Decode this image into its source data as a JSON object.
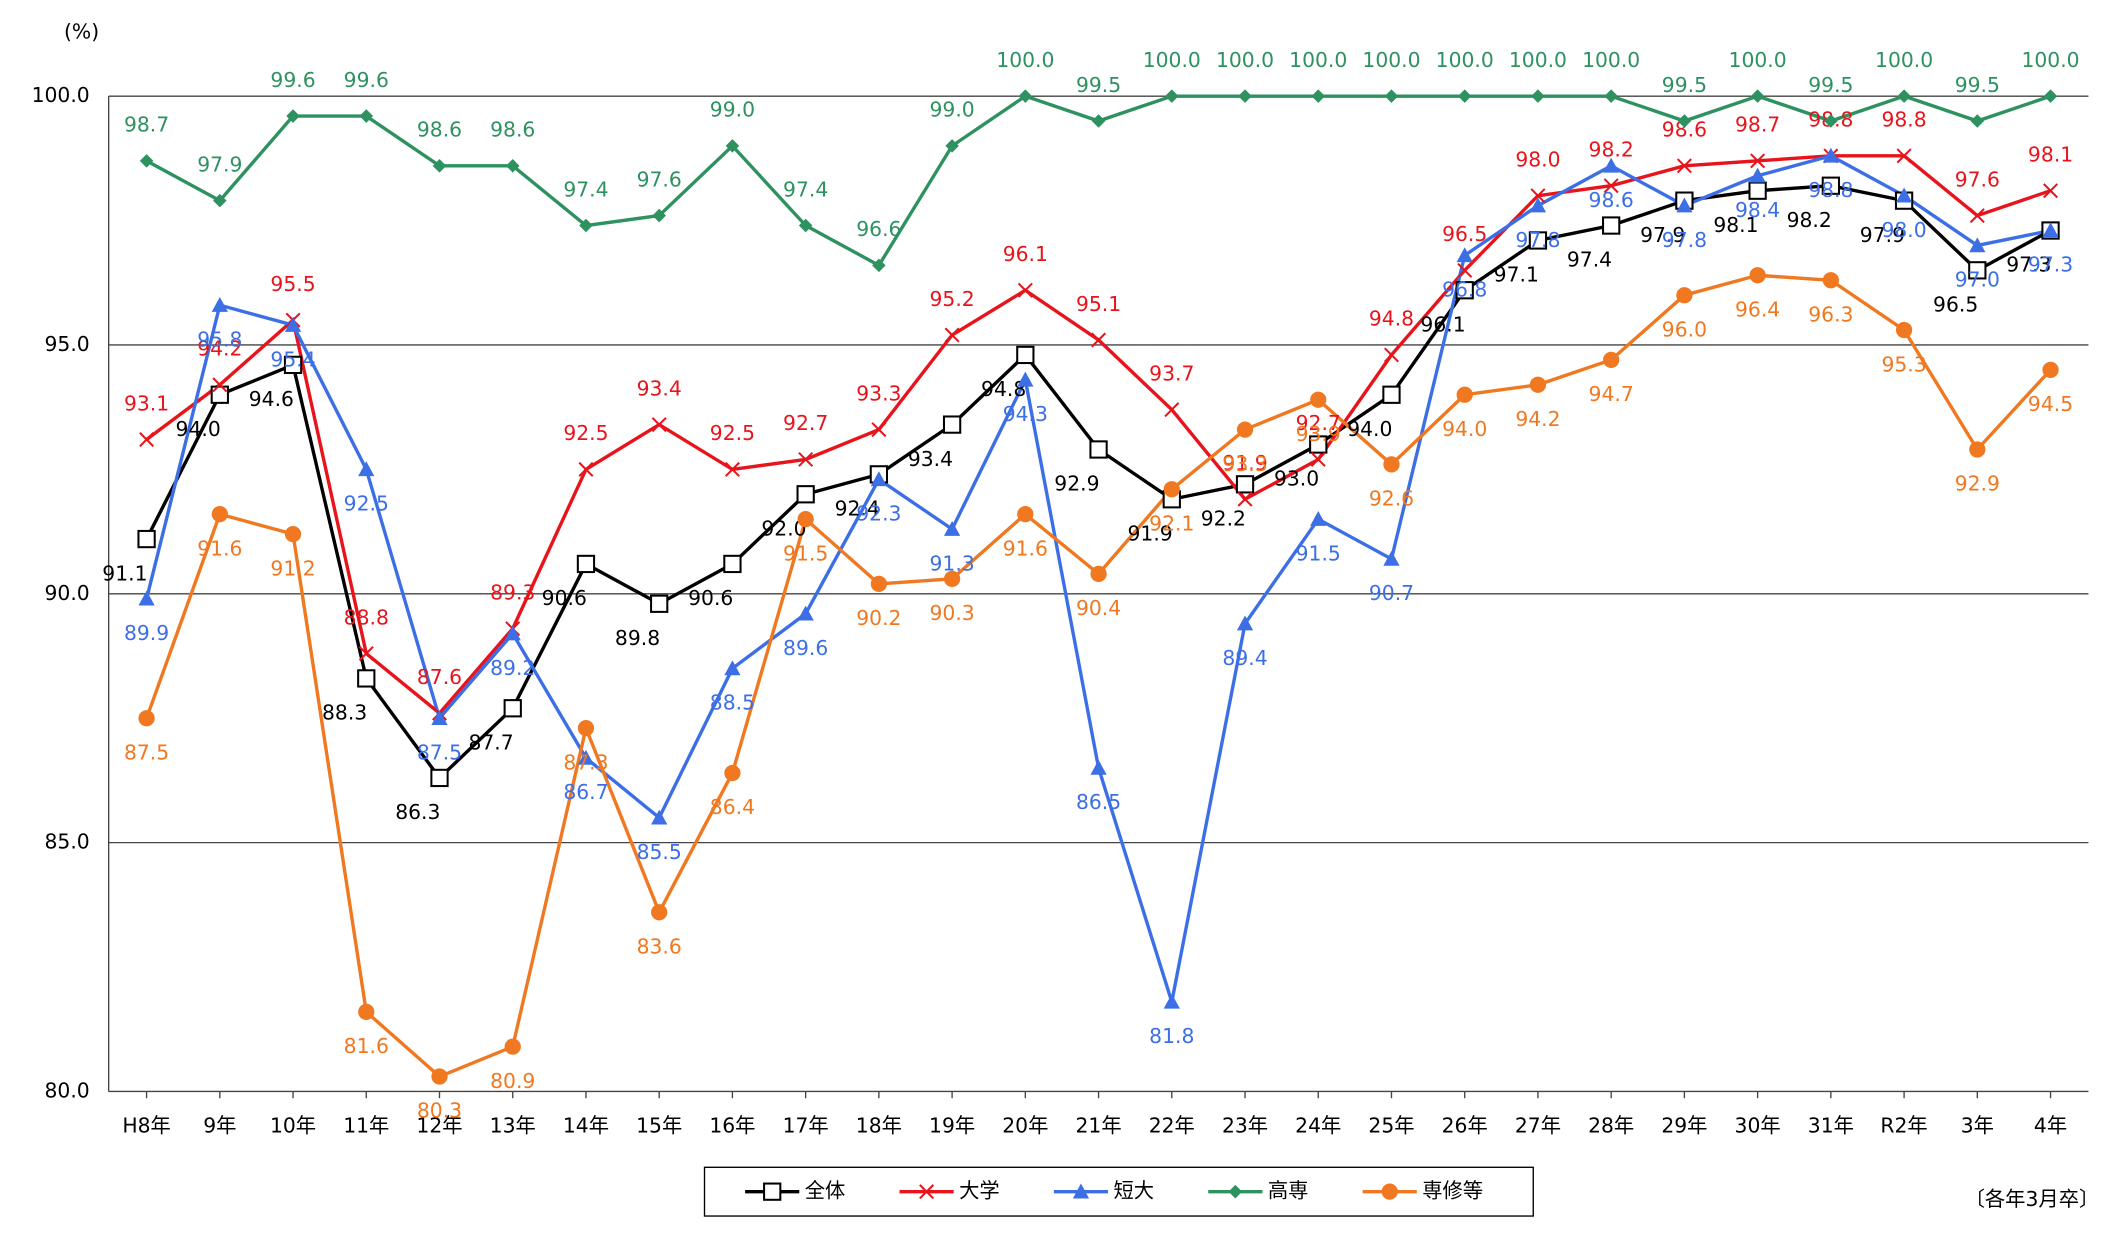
{
  "chart_data": {
    "type": "line",
    "unit_label": "(%)",
    "note": "〔各年3月卒〕",
    "categories": [
      "H8年",
      "9年",
      "10年",
      "11年",
      "12年",
      "13年",
      "14年",
      "15年",
      "16年",
      "17年",
      "18年",
      "19年",
      "20年",
      "21年",
      "22年",
      "23年",
      "24年",
      "25年",
      "26年",
      "27年",
      "28年",
      "29年",
      "30年",
      "31年",
      "R2年",
      "3年",
      "4年"
    ],
    "ylim": [
      80,
      100
    ],
    "yticks": [
      {
        "value": 80,
        "label": "80.0"
      },
      {
        "value": 85,
        "label": "85.0"
      },
      {
        "value": 90,
        "label": "90.0"
      },
      {
        "value": 95,
        "label": "95.0"
      },
      {
        "value": 100,
        "label": "100.0"
      }
    ],
    "grid": true,
    "legend": "bottom",
    "series": [
      {
        "name": "全体",
        "color": "#000000",
        "marker": "square",
        "values": [
          91.1,
          94.0,
          94.6,
          88.3,
          86.3,
          87.7,
          90.6,
          89.8,
          90.6,
          92.0,
          92.4,
          93.4,
          94.8,
          92.9,
          91.9,
          92.2,
          93.0,
          94.0,
          96.1,
          97.1,
          97.4,
          97.9,
          98.1,
          98.2,
          97.9,
          96.5,
          97.3
        ],
        "value_labels": [
          "91.1",
          "94.0",
          "94.6",
          "88.3",
          "86.3",
          "87.7",
          "90.6",
          "89.8",
          "90.6",
          "92.0",
          "92.4",
          "93.4",
          "94.8",
          "92.9",
          "91.9",
          "92.2",
          "93.0",
          "94.0",
          "96.1",
          "97.1",
          "97.4",
          "97.9",
          "98.1",
          "98.2",
          "97.9",
          "96.5",
          "97.3"
        ]
      },
      {
        "name": "大学",
        "color": "#e8141c",
        "marker": "x",
        "values": [
          93.1,
          94.2,
          95.5,
          88.8,
          87.6,
          89.3,
          92.5,
          93.4,
          92.5,
          92.7,
          93.3,
          95.2,
          96.1,
          95.1,
          93.7,
          91.9,
          92.7,
          94.8,
          96.5,
          98.0,
          98.2,
          98.6,
          98.7,
          98.8,
          98.8,
          97.6,
          98.1
        ],
        "value_labels": [
          "93.1",
          "94.2",
          "95.5",
          "88.8",
          "87.6",
          "89.3",
          "92.5",
          "93.4",
          "92.5",
          "92.7",
          "93.3",
          "95.2",
          "96.1",
          "95.1",
          "93.7",
          "91.9",
          "92.7",
          "94.8",
          "96.5",
          "98.0",
          "98.2",
          "98.6",
          "98.7",
          "98.8",
          "98.8",
          "97.6",
          "98.1"
        ]
      },
      {
        "name": "短大",
        "color": "#3c6fe6",
        "marker": "triangle",
        "values": [
          89.9,
          95.8,
          95.4,
          92.5,
          87.5,
          89.2,
          86.7,
          85.5,
          88.5,
          89.6,
          92.3,
          91.3,
          94.3,
          86.5,
          81.8,
          89.4,
          91.5,
          90.7,
          96.8,
          97.8,
          98.6,
          97.8,
          98.4,
          98.8,
          98.0,
          97.0,
          97.3
        ],
        "value_labels": [
          "89.9",
          "95.8",
          "95.4",
          "92.5",
          "87.5",
          "89.2",
          "86.7",
          "85.5",
          "88.5",
          "89.6",
          "92.3",
          "91.3",
          "94.3",
          "86.5",
          "81.8",
          "89.4",
          "91.5",
          "90.7",
          "96.8",
          "97.8",
          "98.6",
          "97.8",
          "98.4",
          "98.8",
          "98.0",
          "97.0",
          "97.3"
        ]
      },
      {
        "name": "高専",
        "color": "#2e9160",
        "marker": "diamond",
        "values": [
          98.7,
          97.9,
          99.6,
          99.6,
          98.6,
          98.6,
          97.4,
          97.6,
          99.0,
          97.4,
          96.6,
          99.0,
          100.0,
          99.5,
          100.0,
          100.0,
          100.0,
          100.0,
          100.0,
          100.0,
          100.0,
          99.5,
          100.0,
          99.5,
          100.0,
          99.5,
          100.0
        ],
        "value_labels": [
          "98.7",
          "97.9",
          "99.6",
          "99.6",
          "98.6",
          "98.6",
          "97.4",
          "97.6",
          "99.0",
          "97.4",
          "96.6",
          "99.0",
          "100.0",
          "99.5",
          "100.0",
          "100.0",
          "100.0",
          "100.0",
          "100.0",
          "100.0",
          "100.0",
          "99.5",
          "100.0",
          "99.5",
          "100.0",
          "99.5",
          "100.0"
        ]
      },
      {
        "name": "専修等",
        "color": "#f07820",
        "marker": "circle",
        "values": [
          87.5,
          91.6,
          91.2,
          81.6,
          80.3,
          80.9,
          87.3,
          83.6,
          86.4,
          91.5,
          90.2,
          90.3,
          91.6,
          90.4,
          92.1,
          93.3,
          93.9,
          92.6,
          94.0,
          94.2,
          94.7,
          96.0,
          96.4,
          96.3,
          95.3,
          92.9,
          94.5
        ],
        "value_labels": [
          "87.5",
          "91.6",
          "91.2",
          "81.6",
          "80.3",
          "80.9",
          "87.3",
          "83.6",
          "86.4",
          "91.5",
          "90.2",
          "90.3",
          "91.6",
          "90.4",
          "92.1",
          "93.3",
          "93.9",
          "92.6",
          "94.0",
          "94.2",
          "94.7",
          "96.0",
          "96.4",
          "96.3",
          "95.3",
          "92.9",
          "94.5"
        ]
      }
    ]
  }
}
